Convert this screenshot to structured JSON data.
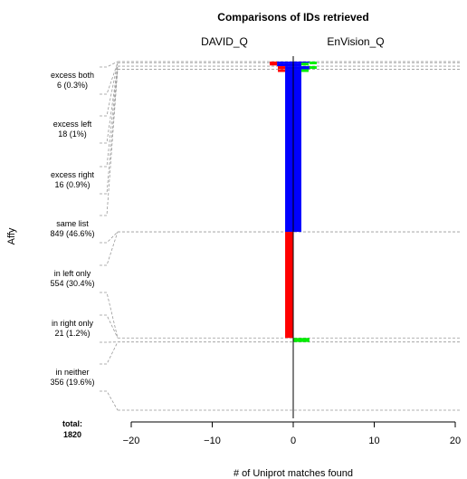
{
  "chart_data": {
    "type": "bar",
    "title": "Comparisons of IDs retrieved",
    "left_list": "DAVID_Q",
    "right_list": "EnVision_Q",
    "ylabel": "Affy",
    "xlabel": "# of Uniprot matches found",
    "xlim": [
      -20,
      20
    ],
    "xticks": [
      -20,
      -10,
      0,
      10,
      20
    ],
    "tick_labels": [
      "−20",
      "−10",
      "0",
      "10",
      "20"
    ],
    "total_label": "total:",
    "total_value": "1820",
    "categories": [
      {
        "label": "excess both",
        "count": "6 (0.3%)",
        "n": 6
      },
      {
        "label": "excess left",
        "count": "18 (1%)",
        "n": 18
      },
      {
        "label": "excess right",
        "count": "16 (0.9%)",
        "n": 16
      },
      {
        "label": "same list",
        "count": "849 (46.6%)",
        "n": 849
      },
      {
        "label": "in left only",
        "count": "554 (30.4%)",
        "n": 554
      },
      {
        "label": "in right only",
        "count": "21 (1.2%)",
        "n": 21
      },
      {
        "label": "in neither",
        "count": "356 (19.6%)",
        "n": 356
      }
    ],
    "segments": [
      {
        "category": "excess both",
        "left": -2,
        "right": 2
      },
      {
        "category": "excess left",
        "left": -2,
        "right": 1
      },
      {
        "category": "excess right",
        "left": -1,
        "right": 2
      },
      {
        "category": "same list",
        "left": -1,
        "right": 1
      },
      {
        "category": "in left only",
        "left": -1,
        "right": 0
      },
      {
        "category": "in right only",
        "left": 0,
        "right": 2
      },
      {
        "category": "in neither",
        "left": 0,
        "right": 0
      }
    ],
    "colors": {
      "left_only": "#ff0000",
      "right_only": "#00ee00",
      "both": "#0000ff",
      "axis": "#000000",
      "guide": "#999999"
    }
  }
}
